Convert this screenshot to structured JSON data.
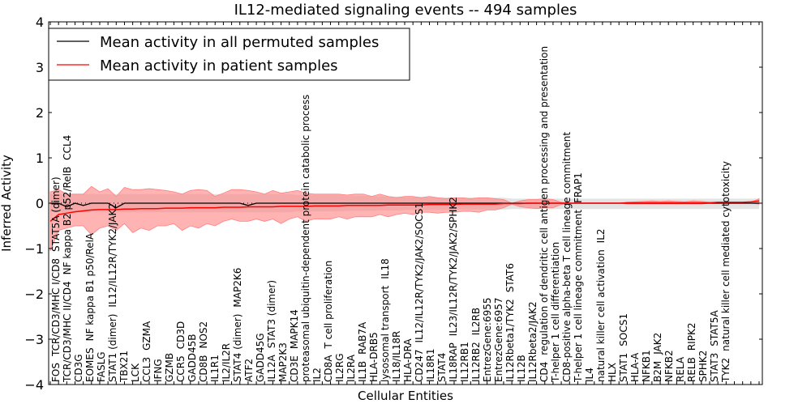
{
  "chart_data": {
    "type": "line",
    "title": "IL12-mediated signaling events -- 494 samples",
    "xlabel": "Cellular Entities",
    "ylabel": "Inferred Activity",
    "ylim": [
      -4,
      4
    ],
    "yticks": [
      "4",
      "3",
      "2",
      "1",
      "0",
      "−1",
      "−2",
      "−3",
      "−4"
    ],
    "ytick_values": [
      4,
      3,
      2,
      1,
      0,
      -1,
      -2,
      -3,
      -4
    ],
    "legend": {
      "placement": "top-left",
      "entries": [
        "Mean activity in all permuted samples",
        "Mean activity in patient samples"
      ]
    },
    "colors": {
      "permuted": "#000000",
      "patient": "#ff0000",
      "patient_band": "#ff8080",
      "permuted_band": "#cccccc"
    },
    "categories": [
      "FOS",
      "TCR/CD3/MHC I/CD8",
      "STAT5A (dimer)",
      "TCR/CD3/MHC II/CD4",
      "NF kappa B2 p52/RelB",
      "CCL4",
      "CD3G",
      "EOMES",
      "NF kappa B1 p50/RelA",
      "FASLG",
      "STAT1 (dimer)",
      "IL12/IL12R/TYK2/JAK2",
      "TBX21",
      "LCK",
      "CCL3",
      "GZMA",
      "IFNG",
      "GZMB",
      "CCR5",
      "CD3D",
      "GADD45B",
      "CD8B",
      "NOS2",
      "IL1R1",
      "IL2/IL2R",
      "STAT4 (dimer)",
      "MAP2K6",
      "ATF2",
      "GADD45G",
      "IL12A",
      "STAT3 (dimer)",
      "MAP2K3",
      "CD3E",
      "MAPK14",
      "proteasomal ubiquitin-dependent protein catabolic process",
      "IL2",
      "CD8A",
      "T cell proliferation",
      "IL2RG",
      "IL2RA",
      "IL1B",
      "RAB7A",
      "HLA-DRB5",
      "lysosomal transport",
      "IL18",
      "IL18/IL18R",
      "HLA-DRA",
      "CD247",
      "IL12/IL12R/TYK2/JAK2/SOCS1",
      "IL18R1",
      "STAT4",
      "IL18RAP",
      "IL23/IL12R/TYK2/JAK2/SPHK2",
      "IL12RB1",
      "IL12RB2",
      "IL2RB",
      "EntrezGene:6955",
      "EntrezGene:6957",
      "IL12Rbeta1/TYK2",
      "STAT6",
      "IL12B",
      "IL12Rbeta2/JAK2",
      "CD4",
      "regulation of dendritic cell antigen processing and presentation",
      "T-helper 1 cell differentiation",
      "CD8-positive alpha-beta T cell lineage commitment",
      "T-helper 1 cell lineage commitment",
      "FRAP1",
      "IL4",
      "natural killer cell activation",
      "IL2",
      "HLX",
      "STAT1",
      "SOCS1",
      "HLA-A",
      "NFKB1",
      "B2M",
      "JAK2",
      "NFKB2",
      "RELA",
      "RELB",
      "RIPK2",
      "SPHK2",
      "STAT3",
      "STAT5A",
      "TYK2",
      "natural killer cell mediated cytotoxicity"
    ],
    "series": [
      {
        "name": "Mean activity in all permuted samples",
        "values": [
          0,
          0,
          -0.08,
          0,
          -0.05,
          0,
          0,
          0,
          -0.1,
          0,
          0,
          0,
          0,
          0,
          0,
          0,
          0,
          0,
          0,
          0,
          0,
          0,
          0,
          0,
          -0.05,
          0,
          0,
          0,
          0,
          0,
          0,
          0,
          0,
          0,
          0,
          0,
          0,
          0,
          0,
          0,
          0,
          0,
          0,
          0,
          0,
          0,
          0,
          0,
          0,
          0,
          0,
          0,
          0,
          0,
          0,
          0,
          0,
          0,
          0,
          0,
          0,
          0,
          0,
          0,
          0,
          0,
          0,
          0,
          0,
          0,
          0,
          0,
          0,
          0,
          0,
          0,
          0,
          0,
          0,
          0,
          0,
          0,
          0,
          0,
          0,
          0,
          0
        ],
        "band_upper": [
          0.2,
          0.2,
          0.2,
          0.2,
          0.2,
          0.2,
          0.2,
          0.2,
          0.2,
          0.2,
          0.2,
          0.2,
          0.2,
          0.2,
          0.2,
          0.2,
          0.2,
          0.2,
          0.2,
          0.2,
          0.2,
          0.2,
          0.2,
          0.2,
          0.2,
          0.2,
          0.2,
          0.2,
          0.2,
          0.2,
          0.18,
          0.18,
          0.18,
          0.18,
          0.18,
          0.18,
          0.16,
          0.16,
          0.16,
          0.16,
          0.15,
          0.15,
          0.15,
          0.14,
          0.14,
          0.14,
          0.13,
          0.13,
          0.13,
          0.12,
          0.12,
          0.12,
          0.12,
          0.12,
          0.12,
          0.12,
          0.1,
          0.1,
          0.1,
          0.1,
          0.1,
          0.1,
          0.1,
          0.1,
          0.1,
          0.1,
          0.1,
          0.1,
          0.1,
          0.1,
          0.1,
          0.1,
          0.1,
          0.1,
          0.1,
          0.1,
          0.1,
          0.1,
          0.1,
          0.1,
          0.1,
          0.1,
          0.1,
          0.1,
          0.1,
          0.1,
          0.1
        ],
        "band_lower": [
          -0.2,
          -0.2,
          -0.2,
          -0.2,
          -0.2,
          -0.2,
          -0.2,
          -0.2,
          -0.2,
          -0.2,
          -0.2,
          -0.2,
          -0.2,
          -0.2,
          -0.2,
          -0.2,
          -0.2,
          -0.2,
          -0.2,
          -0.2,
          -0.2,
          -0.2,
          -0.2,
          -0.2,
          -0.2,
          -0.2,
          -0.2,
          -0.2,
          -0.2,
          -0.2,
          -0.18,
          -0.18,
          -0.18,
          -0.18,
          -0.18,
          -0.18,
          -0.17,
          -0.17,
          -0.17,
          -0.17,
          -0.16,
          -0.16,
          -0.16,
          -0.15,
          -0.15,
          -0.15,
          -0.15,
          -0.15,
          -0.15,
          -0.14,
          -0.14,
          -0.14,
          -0.14,
          -0.14,
          -0.14,
          -0.14,
          -0.13,
          -0.13,
          -0.13,
          -0.13,
          -0.13,
          -0.13,
          -0.13,
          -0.13,
          -0.13,
          -0.13,
          -0.13,
          -0.13,
          -0.13,
          -0.13,
          -0.13,
          -0.13,
          -0.13,
          -0.13,
          -0.13,
          -0.13,
          -0.13,
          -0.13,
          -0.13,
          -0.13,
          -0.13,
          -0.13,
          -0.13,
          -0.13,
          -0.13,
          -0.13,
          -0.13
        ]
      },
      {
        "name": "Mean activity in patient samples",
        "values": [
          -0.4,
          -0.25,
          -0.22,
          -0.19,
          -0.17,
          -0.15,
          -0.14,
          -0.14,
          -0.14,
          -0.13,
          -0.13,
          -0.12,
          -0.12,
          -0.12,
          -0.11,
          -0.11,
          -0.11,
          -0.1,
          -0.1,
          -0.1,
          -0.1,
          -0.09,
          -0.09,
          -0.09,
          -0.08,
          -0.08,
          -0.08,
          -0.08,
          -0.07,
          -0.07,
          -0.07,
          -0.07,
          -0.06,
          -0.06,
          -0.06,
          -0.06,
          -0.05,
          -0.05,
          -0.05,
          -0.05,
          -0.05,
          -0.04,
          -0.04,
          -0.04,
          -0.04,
          -0.04,
          -0.03,
          -0.03,
          -0.03,
          -0.03,
          -0.02,
          -0.02,
          -0.02,
          -0.02,
          -0.02,
          -0.01,
          -0.01,
          -0.01,
          0,
          0,
          0,
          0,
          0,
          0,
          0,
          0,
          0,
          0,
          0,
          0,
          0.01,
          0.01,
          0.01,
          0.01,
          0.01,
          0.01,
          0.01,
          0.01,
          0.01,
          0.01,
          0.01,
          0.02,
          0.02,
          0.02,
          0.02,
          0.03,
          0.05
        ],
        "band_upper": [
          0.25,
          0.3,
          0.2,
          0.2,
          0.2,
          0.37,
          0.25,
          0.32,
          0.15,
          0.35,
          0.3,
          0.3,
          0.32,
          0.3,
          0.28,
          0.25,
          0.2,
          0.28,
          0.3,
          0.28,
          0.15,
          0.22,
          0.3,
          0.3,
          0.28,
          0.25,
          0.2,
          0.28,
          0.22,
          0.25,
          0.28,
          0.22,
          0.2,
          0.2,
          0.2,
          0.2,
          0.18,
          0.2,
          0.2,
          0.15,
          0.2,
          0.15,
          0.12,
          0.15,
          0.15,
          0.12,
          0.15,
          0.12,
          0.1,
          0.12,
          0.12,
          0.1,
          0.12,
          0.12,
          0.1,
          0.08,
          0.0,
          0.05,
          0.08,
          0.08,
          0.1,
          0.08,
          0.02,
          0.0,
          0.0,
          0.0,
          0.0,
          0.0,
          0.0,
          0.0,
          0.02,
          0.03,
          0.04,
          0.05,
          0.04,
          0.05,
          0.04,
          0.03,
          0.05,
          0.04,
          0.02,
          0.02,
          0.02,
          0.02,
          0.02,
          0.02,
          0.1
        ],
        "band_lower": [
          -1.05,
          -0.6,
          -0.55,
          -0.5,
          -0.5,
          -0.7,
          -0.55,
          -0.5,
          -0.6,
          -0.45,
          -0.65,
          -0.55,
          -0.6,
          -0.5,
          -0.5,
          -0.45,
          -0.6,
          -0.5,
          -0.55,
          -0.45,
          -0.5,
          -0.4,
          -0.35,
          -0.4,
          -0.4,
          -0.35,
          -0.4,
          -0.35,
          -0.45,
          -0.35,
          -0.3,
          -0.4,
          -0.35,
          -0.35,
          -0.35,
          -0.3,
          -0.35,
          -0.3,
          -0.3,
          -0.3,
          -0.25,
          -0.3,
          -0.25,
          -0.22,
          -0.25,
          -0.2,
          -0.2,
          -0.22,
          -0.2,
          -0.2,
          -0.18,
          -0.18,
          -0.2,
          -0.15,
          -0.15,
          -0.1,
          -0.02,
          -0.08,
          -0.1,
          -0.12,
          -0.1,
          -0.1,
          -0.03,
          0.0,
          0.0,
          0.0,
          0.0,
          0.0,
          0.0,
          0.0,
          -0.02,
          -0.02,
          -0.02,
          -0.02,
          -0.02,
          -0.02,
          -0.02,
          -0.02,
          -0.02,
          -0.02,
          0.0,
          0.0,
          0.0,
          0.0,
          0.0,
          0.0,
          -0.02
        ]
      }
    ]
  }
}
